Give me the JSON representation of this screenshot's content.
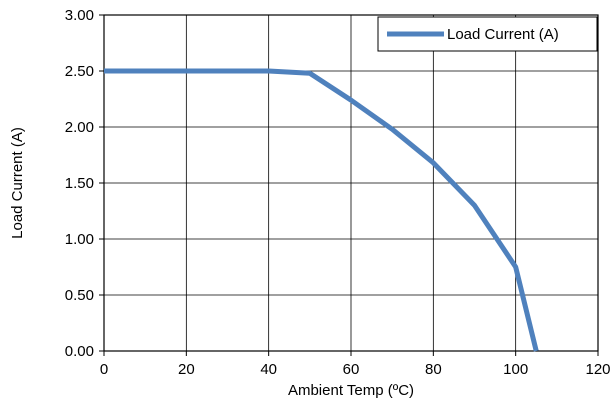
{
  "chart_data": {
    "type": "line",
    "title": "",
    "xlabel": "Ambient Temp (ºC)",
    "ylabel": "Load Current (A)",
    "xlim": [
      0,
      120
    ],
    "ylim": [
      0,
      3
    ],
    "x_ticks": [
      0,
      20,
      40,
      60,
      80,
      100,
      120
    ],
    "x_tick_labels": [
      "0",
      "20",
      "40",
      "60",
      "80",
      "100",
      "120"
    ],
    "y_ticks": [
      0,
      0.5,
      1,
      1.5,
      2,
      2.5,
      3
    ],
    "y_tick_labels": [
      "0.00",
      "0.50",
      "1.00",
      "1.50",
      "2.00",
      "2.50",
      "3.00"
    ],
    "grid": true,
    "legend_position": "top-right",
    "series": [
      {
        "name": "Load Current (A)",
        "color": "#4f81bd",
        "x": [
          0,
          40,
          50,
          60,
          70,
          80,
          90,
          100,
          105
        ],
        "y": [
          2.5,
          2.5,
          2.48,
          2.24,
          1.98,
          1.68,
          1.3,
          0.75,
          0
        ]
      }
    ]
  }
}
